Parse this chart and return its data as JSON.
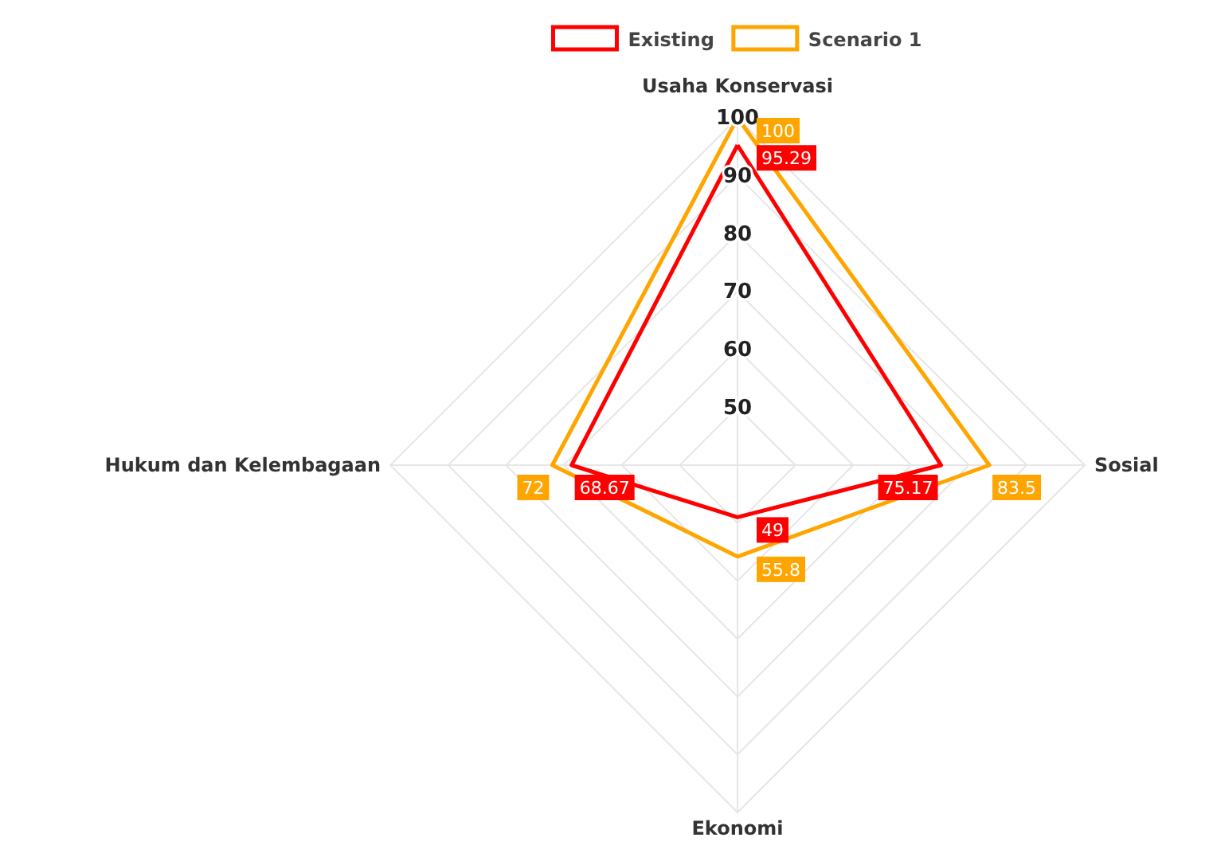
{
  "chart_data": {
    "type": "radar",
    "categories": [
      "Usaha Konservasi",
      "Sosial",
      "Ekonomi",
      "Hukum dan Kelembagaan"
    ],
    "series": [
      {
        "name": "Existing",
        "color": "#ff0000",
        "values": [
          95.29,
          75.17,
          49,
          68.67
        ]
      },
      {
        "name": "Scenario 1",
        "color": "#ffa500",
        "values": [
          100,
          83.5,
          55.8,
          72
        ]
      }
    ],
    "ylim": [
      40,
      100
    ],
    "yticks": [
      50,
      60,
      70,
      80,
      90,
      100
    ],
    "grid": true,
    "legend": "top",
    "data_labels": true
  }
}
